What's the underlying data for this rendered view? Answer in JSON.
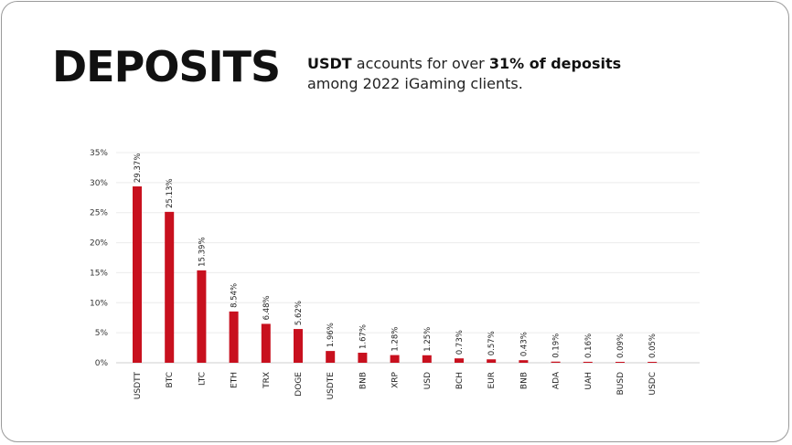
{
  "header": {
    "title": "DEPOSITS",
    "sub_part1": "USDT",
    "sub_part2": " accounts for over ",
    "sub_part3": "31% of deposits",
    "sub_line2": "among 2022 iGaming clients."
  },
  "chart_data": {
    "type": "bar",
    "title": "",
    "xlabel": "",
    "ylabel": "",
    "ylim": [
      0,
      35
    ],
    "yticks": [
      0,
      5,
      10,
      15,
      20,
      25,
      30,
      35
    ],
    "ytick_labels": [
      "0%",
      "5%",
      "10%",
      "15%",
      "20%",
      "25%",
      "30%",
      "35%"
    ],
    "grid": true,
    "bar_color": "#c8101e",
    "categories": [
      "USDTT",
      "BTC",
      "LTC",
      "ETH",
      "TRX",
      "DOGE",
      "USDTE",
      "BNB",
      "XRP",
      "USD",
      "BCH",
      "EUR",
      "BNB",
      "ADA",
      "UAH",
      "BUSD",
      "USDC"
    ],
    "values": [
      29.37,
      25.13,
      15.39,
      8.54,
      6.48,
      5.62,
      1.96,
      1.67,
      1.28,
      1.25,
      0.73,
      0.57,
      0.43,
      0.19,
      0.16,
      0.09,
      0.05
    ],
    "value_labels": [
      "29.37%",
      "25.13%",
      "15.39%",
      "8.54%",
      "6.48%",
      "5.62%",
      "1.96%",
      "1.67%",
      "1.28%",
      "1.25%",
      "0.73%",
      "0.57%",
      "0.43%",
      "0.19%",
      "0.16%",
      "0.09%",
      "0.05%"
    ]
  }
}
